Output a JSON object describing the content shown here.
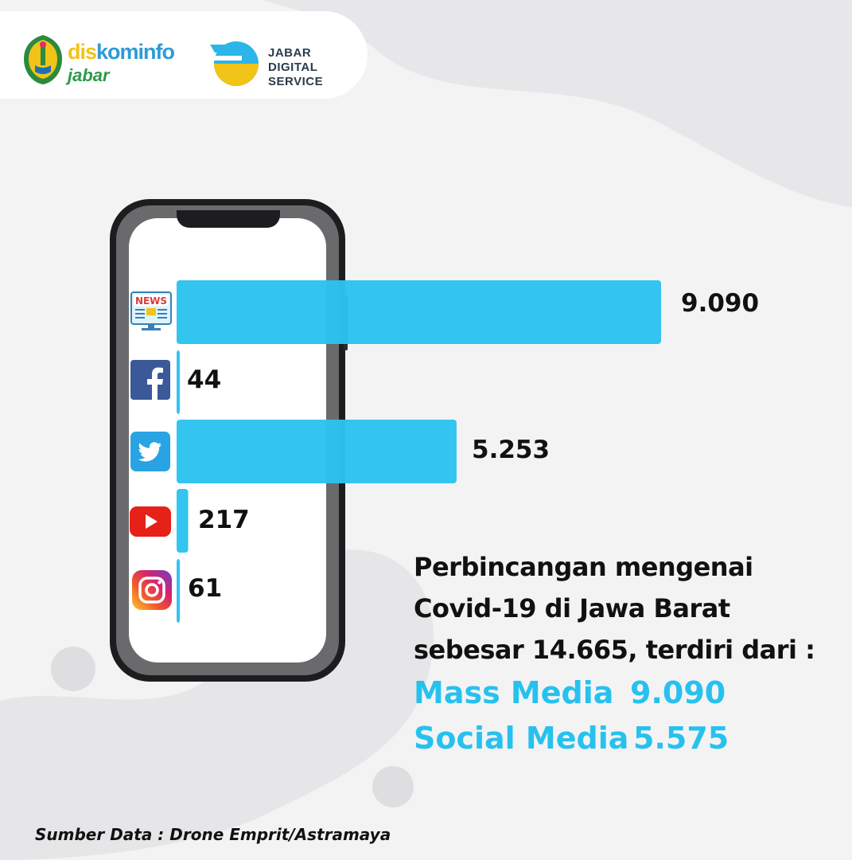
{
  "header": {
    "logo_left_line1_a": "dis",
    "logo_left_line1_b": "kominfo",
    "logo_left_line2": "jabar",
    "logo_right_line1": "JABAR",
    "logo_right_line2": "DIGITAL",
    "logo_right_line3": "SERVICE"
  },
  "chart_data": {
    "type": "bar",
    "orientation": "horizontal",
    "categories": [
      "news-icon",
      "facebook-icon",
      "twitter-icon",
      "youtube-icon",
      "instagram-icon"
    ],
    "values": [
      9090,
      44,
      5253,
      217,
      61
    ],
    "value_labels": [
      "9.090",
      "44",
      "5.253",
      "217",
      "61"
    ],
    "bar_color": "#2cc2ef",
    "xlim": [
      0,
      9090
    ]
  },
  "summary": {
    "line1": "Perbincangan mengenai",
    "line2": "Covid-19 di Jawa Barat",
    "line3": "sebesar 14.665, terdiri dari :",
    "mass_media_label": "Mass Media",
    "mass_media_value": "9.090",
    "social_media_label": "Social Media",
    "social_media_value": "5.575",
    "accent_color": "#27c1ee"
  },
  "footer": {
    "source": "Sumber Data : Drone Emprit/Astramaya"
  }
}
